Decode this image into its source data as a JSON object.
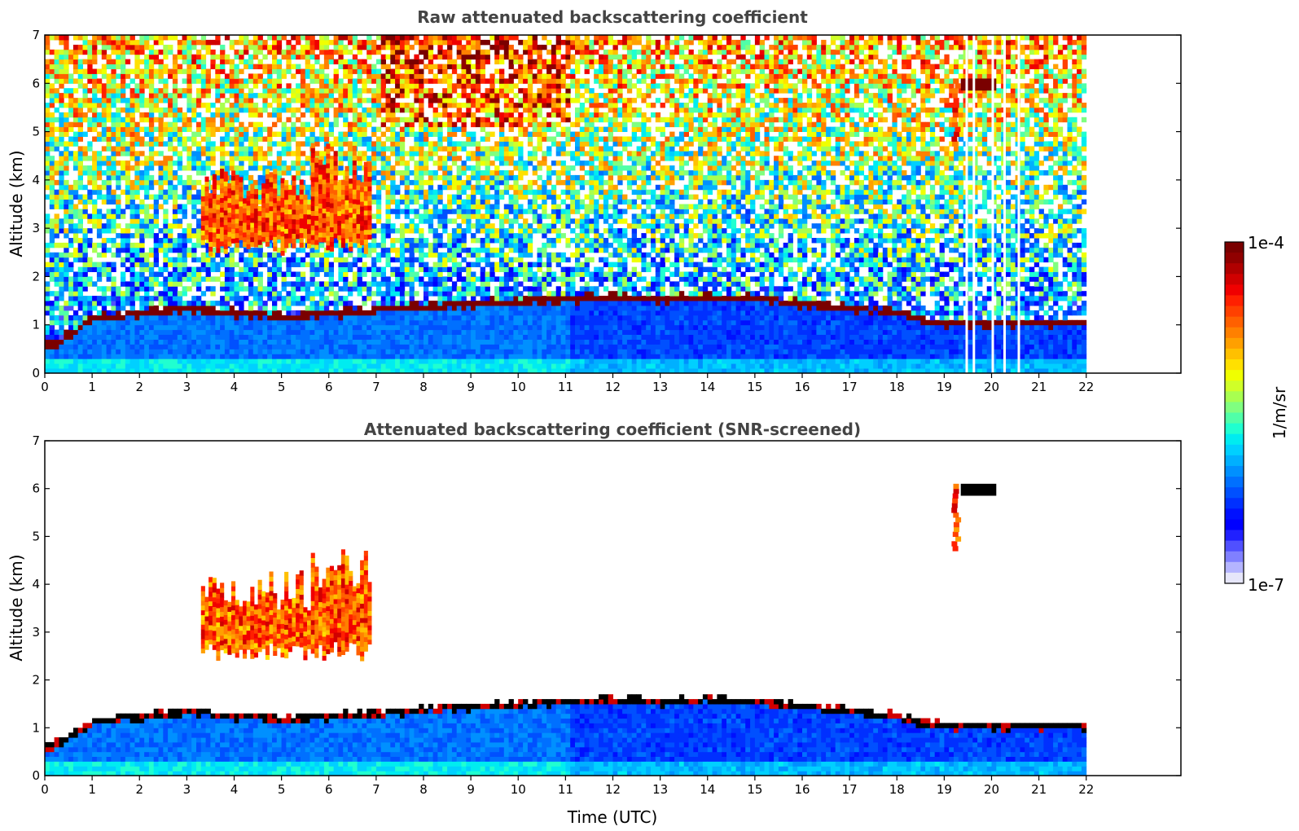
{
  "chart_data": [
    {
      "type": "heatmap",
      "title": "Raw attenuated backscattering coefficient",
      "xlabel": "",
      "ylabel": "Altitude (km)",
      "xlim": [
        0,
        24
      ],
      "ylim": [
        0,
        7
      ],
      "xticks": [
        "0",
        "1",
        "2",
        "3",
        "4",
        "5",
        "6",
        "7",
        "8",
        "9",
        "10",
        "11",
        "12",
        "13",
        "14",
        "15",
        "16",
        "17",
        "18",
        "19",
        "20",
        "21",
        "22"
      ],
      "yticks": [
        "0",
        "1",
        "2",
        "3",
        "4",
        "5",
        "6",
        "7"
      ],
      "data_extent_hours": [
        0,
        22
      ],
      "screened": false,
      "features": [
        {
          "name": "boundary-layer top",
          "x": [
            0.1,
            1,
            2,
            3,
            4,
            5,
            6,
            7,
            8,
            9,
            10,
            11,
            12,
            13,
            14,
            15,
            16,
            17,
            18,
            18.5,
            19
          ],
          "y": [
            0.55,
            1.1,
            1.2,
            1.3,
            1.2,
            1.15,
            1.2,
            1.25,
            1.35,
            1.4,
            1.45,
            1.5,
            1.55,
            1.5,
            1.55,
            1.5,
            1.4,
            1.3,
            1.2,
            1.05,
            1.0
          ]
        },
        {
          "name": "mid-level clouds",
          "x_range": [
            3.3,
            6.9
          ],
          "y_range": [
            2.3,
            4.7
          ]
        },
        {
          "name": "cirrus",
          "x_range": [
            19.1,
            20.3
          ],
          "y_range": [
            4.7,
            6.1
          ]
        },
        {
          "name": "data gaps",
          "x": [
            19.45,
            19.6,
            20.0,
            20.25,
            20.55
          ]
        }
      ]
    },
    {
      "type": "heatmap",
      "title": "Attenuated backscattering coefficient (SNR-screened)",
      "xlabel": "Time (UTC)",
      "ylabel": "Altitude (km)",
      "xlim": [
        0,
        24
      ],
      "ylim": [
        0,
        7
      ],
      "xticks": [
        "0",
        "1",
        "2",
        "3",
        "4",
        "5",
        "6",
        "7",
        "8",
        "9",
        "10",
        "11",
        "12",
        "13",
        "14",
        "15",
        "16",
        "17",
        "18",
        "19",
        "20",
        "21",
        "22"
      ],
      "yticks": [
        "0",
        "1",
        "2",
        "3",
        "4",
        "5",
        "6",
        "7"
      ],
      "data_extent_hours": [
        0,
        22
      ],
      "screened": true,
      "features": [
        {
          "name": "boundary-layer top",
          "x": [
            0.1,
            1,
            2,
            3,
            4,
            5,
            6,
            7,
            8,
            9,
            10,
            11,
            12,
            13,
            14,
            15,
            16,
            17,
            18,
            18.5,
            19
          ],
          "y": [
            0.55,
            1.1,
            1.2,
            1.3,
            1.2,
            1.15,
            1.2,
            1.25,
            1.35,
            1.4,
            1.45,
            1.5,
            1.55,
            1.5,
            1.55,
            1.5,
            1.4,
            1.3,
            1.2,
            1.05,
            1.0
          ]
        },
        {
          "name": "mid-level clouds",
          "x_range": [
            3.3,
            6.9
          ],
          "y_range": [
            2.3,
            4.7
          ]
        },
        {
          "name": "cirrus",
          "x_range": [
            19.1,
            20.3
          ],
          "y_range": [
            4.7,
            6.1
          ]
        }
      ]
    }
  ],
  "colorbar": {
    "label": "1/m/sr",
    "max_label": "1e-4",
    "min_label": "1e-7",
    "scale": "log",
    "range": [
      1e-07,
      0.0001
    ],
    "colormap": [
      "#e6e6fa",
      "#b4b4ff",
      "#8080ff",
      "#5050ff",
      "#2020ff",
      "#0000ff",
      "#0010ff",
      "#0030ff",
      "#0050ff",
      "#0070ff",
      "#0090ff",
      "#00b0ff",
      "#00d0ff",
      "#00ecf0",
      "#20ffd0",
      "#50ffa8",
      "#80ff80",
      "#a8ff50",
      "#d0ff28",
      "#f0ff00",
      "#ffe000",
      "#ffc000",
      "#ffa000",
      "#ff8000",
      "#ff6000",
      "#ff4000",
      "#ff2000",
      "#f00000",
      "#d00000",
      "#b00000",
      "#900000",
      "#7a0000"
    ]
  },
  "colors": {
    "title": "#444444",
    "axis": "#000000",
    "masked": "#000000"
  }
}
